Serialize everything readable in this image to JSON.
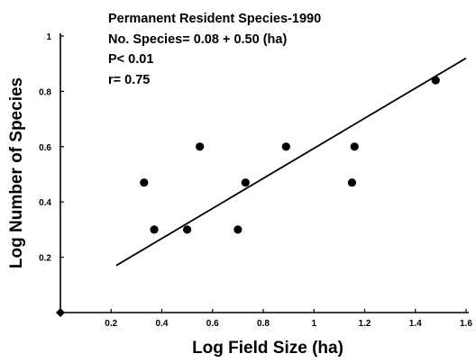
{
  "chart_data": {
    "type": "scatter",
    "title": "",
    "xlabel": "Log Field Size (ha)",
    "ylabel": "Log Number of Species",
    "xlim": [
      0,
      1.6
    ],
    "ylim": [
      0,
      1
    ],
    "grid": false,
    "x_ticks": [
      0.2,
      0.4,
      0.6,
      0.8,
      1,
      1.2,
      1.4,
      1.6
    ],
    "x_tick_labels": [
      "0.2",
      "0.4",
      "0.6",
      "0.8",
      "1",
      "1.2",
      "1.4",
      "1.6"
    ],
    "y_ticks": [
      0.2,
      0.4,
      0.6,
      0.8,
      1
    ],
    "y_tick_labels": [
      "0.2",
      "0.4",
      "0.6",
      "0.8",
      "1"
    ],
    "annotations": [
      "Permanent Resident Species-1990",
      "No. Species= 0.08 + 0.50 (ha)",
      "P< 0.01",
      "r= 0.75"
    ],
    "points": [
      {
        "x": 0.33,
        "y": 0.47
      },
      {
        "x": 0.37,
        "y": 0.3
      },
      {
        "x": 0.5,
        "y": 0.3
      },
      {
        "x": 0.55,
        "y": 0.6
      },
      {
        "x": 0.7,
        "y": 0.3
      },
      {
        "x": 0.73,
        "y": 0.47
      },
      {
        "x": 0.89,
        "y": 0.6
      },
      {
        "x": 1.15,
        "y": 0.47
      },
      {
        "x": 1.16,
        "y": 0.6
      },
      {
        "x": 1.48,
        "y": 0.84
      }
    ],
    "origin_marker": {
      "x": 0,
      "y": 0
    },
    "fit_line": {
      "x_start": 0.22,
      "x_end": 1.6,
      "y_start": 0.17,
      "y_end": 0.92
    }
  }
}
